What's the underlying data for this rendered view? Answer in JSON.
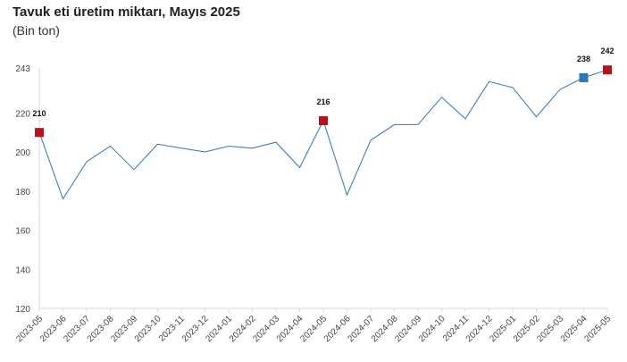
{
  "header": {
    "title": "Tavuk eti üretim miktarı, Mayıs 2025",
    "subtitle": "(Bin ton)"
  },
  "chart_data": {
    "type": "line",
    "title": "Tavuk eti üretim miktarı, Mayıs 2025",
    "subtitle": "(Bin ton)",
    "xlabel": "",
    "ylabel": "",
    "ylim": [
      120,
      243
    ],
    "yticks": [
      120,
      140,
      160,
      180,
      200,
      220,
      243
    ],
    "categories": [
      "2023-05",
      "2023-06",
      "2023-07",
      "2023-08",
      "2023-09",
      "2023-10",
      "2023-11",
      "2023-12",
      "2024-01",
      "2024-02",
      "2024-03",
      "2024-04",
      "2024-05",
      "2024-06",
      "2024-07",
      "2024-08",
      "2024-09",
      "2024-10",
      "2024-11",
      "2024-12",
      "2025-01",
      "2025-02",
      "2025-03",
      "2025-04",
      "2025-05"
    ],
    "series": [
      {
        "values": [
          210,
          176,
          195,
          203,
          191,
          204,
          202,
          200,
          203,
          202,
          205,
          192,
          216,
          178,
          206,
          214,
          214,
          228,
          217,
          236,
          233,
          218,
          232,
          238,
          242
        ]
      }
    ],
    "highlights": [
      {
        "index": 0,
        "label": "210",
        "color": "#b5121b"
      },
      {
        "index": 12,
        "label": "216",
        "color": "#b5121b"
      },
      {
        "index": 23,
        "label": "238",
        "color": "#2e75b6"
      },
      {
        "index": 24,
        "label": "242",
        "color": "#b5121b"
      }
    ],
    "line_color": "#2e75b6",
    "grid": false
  }
}
